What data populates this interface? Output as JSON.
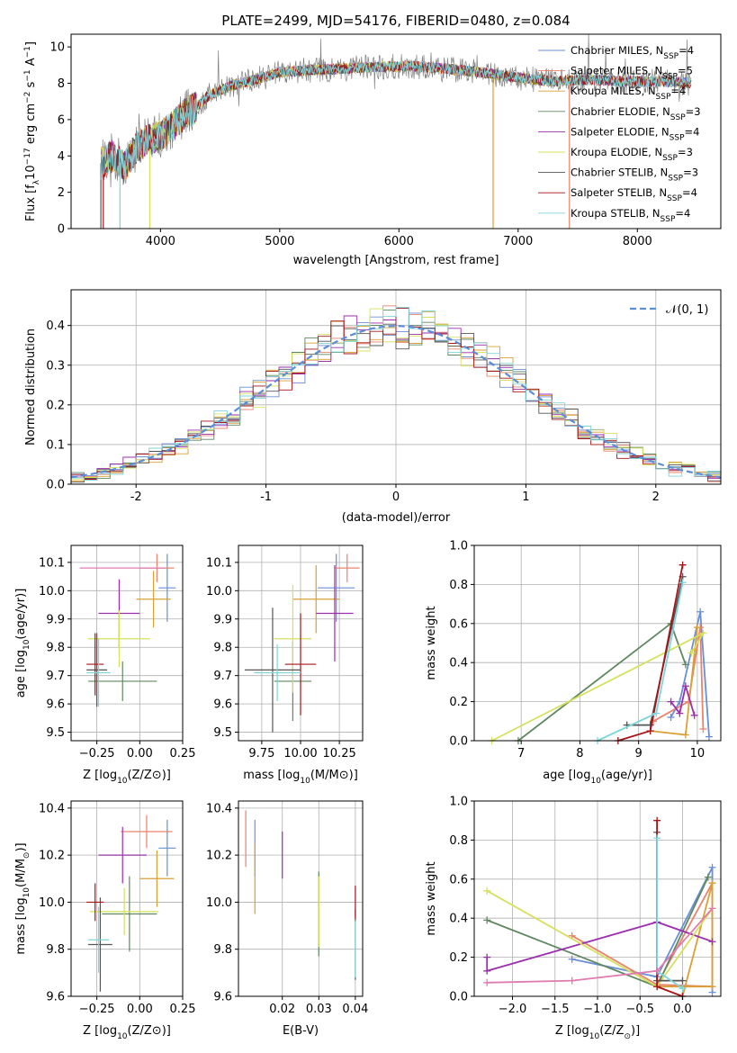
{
  "title": "PLATE=2499, MJD=54176, FIBERID=0480, z=0.084",
  "colors": {
    "Chabrier MILES": "#6a8fd6",
    "Salpeter MILES": "#e8836c",
    "Kroupa MILES": "#d9a035",
    "Chabrier ELODIE": "#5f8860",
    "Salpeter ELODIE": "#9b2fae",
    "Kroupa ELODIE": "#d6e05c",
    "Chabrier STELIB": "#555555",
    "Salpeter STELIB": "#a51419",
    "Kroupa STELIB": "#7fd5d9",
    "normal": "#5b8ed8",
    "data": "#808080"
  },
  "chart_data": [
    {
      "id": "spectrum",
      "type": "line",
      "title": "PLATE=2499, MJD=54176, FIBERID=0480, z=0.084",
      "xlabel": "wavelength [Angstrom, rest frame]",
      "ylabel": "Flux [f",
      "ylabel_parts": [
        "Flux [f",
        "λ",
        "10",
        "−17",
        " erg cm",
        "−2",
        " s",
        "−1",
        " A",
        "−1",
        "]"
      ],
      "xlim": [
        3250,
        8700
      ],
      "ylim": [
        0,
        10.7
      ],
      "xticks": [
        4000,
        5000,
        6000,
        7000,
        8000
      ],
      "yticks": [
        0,
        2,
        4,
        6,
        8,
        10
      ],
      "grid": false,
      "legend_position": "top-right",
      "legend": [
        [
          "Chabrier MILES, N",
          "SSP",
          "=4"
        ],
        [
          "Salpeter MILES, N",
          "SSP",
          "=5"
        ],
        [
          "Kroupa MILES, N",
          "SSP",
          "=4"
        ],
        [
          "Chabrier ELODIE, N",
          "SSP",
          "=3"
        ],
        [
          "Salpeter ELODIE, N",
          "SSP",
          "=4"
        ],
        [
          "Kroupa ELODIE, N",
          "SSP",
          "=3"
        ],
        [
          "Chabrier STELIB, N",
          "SSP",
          "=3"
        ],
        [
          "Salpeter STELIB, N",
          "SSP",
          "=4"
        ],
        [
          "Kroupa STELIB, N",
          "SSP",
          "=4"
        ]
      ],
      "continuum": {
        "x": [
          3500,
          3600,
          3700,
          3800,
          3900,
          4000,
          4100,
          4200,
          4300,
          4400,
          4500,
          4600,
          4800,
          5000,
          5200,
          5500,
          5800,
          6100,
          6400,
          6700,
          7000,
          7300,
          7600,
          7900,
          8200,
          8450
        ],
        "y": [
          3.6,
          4.0,
          3.4,
          4.5,
          4.9,
          5.1,
          5.6,
          6.3,
          6.7,
          7.3,
          7.6,
          7.9,
          8.2,
          8.6,
          8.7,
          8.8,
          8.9,
          8.95,
          8.8,
          8.6,
          8.3,
          8.1,
          8.2,
          8.1,
          8.1,
          8.0
        ]
      }
    },
    {
      "id": "residuals",
      "type": "histogram",
      "xlabel": "(data-model)/error",
      "ylabel": "Normed distribution",
      "xlim": [
        -2.5,
        2.5
      ],
      "ylim": [
        0,
        0.49
      ],
      "xticks": [
        -2,
        -1,
        0,
        1,
        2
      ],
      "yticks": [
        0.0,
        0.1,
        0.2,
        0.3,
        0.4
      ],
      "grid": true,
      "legend_position": "top-right",
      "legend": [
        "𝒩(0, 1)"
      ],
      "bin_width": 0.1,
      "bins_from": -2.5
    },
    {
      "id": "age-vs-Z",
      "type": "errorbar",
      "xlabel": [
        "Z [log",
        "10",
        "(Z/Z",
        "⊙",
        ")]"
      ],
      "ylabel": [
        "age  [log",
        "10",
        "(age/yr)]"
      ],
      "xlim": [
        -0.4,
        0.25
      ],
      "ylim": [
        9.47,
        10.16
      ],
      "xticks": [
        -0.25,
        0.0,
        0.25
      ],
      "xtick_labels": [
        "−0.25",
        "0.00",
        "0.25"
      ],
      "yticks": [
        9.5,
        9.6,
        9.7,
        9.8,
        9.9,
        10.0,
        10.1
      ],
      "grid": true,
      "points": [
        {
          "model": "Chabrier MILES",
          "x": 0.16,
          "xerr": 0.05,
          "y": 10.01,
          "yerr": 0.12
        },
        {
          "model": "Salpeter MILES",
          "x": 0.1,
          "xerr": 0.1,
          "y": 10.08,
          "yerr": 0.05
        },
        {
          "model": "Kroupa MILES",
          "x": 0.08,
          "xerr": 0.1,
          "y": 9.97,
          "yerr": 0.1
        },
        {
          "model": "Chabrier ELODIE",
          "x": -0.1,
          "xerr": 0.2,
          "y": 9.68,
          "yerr": 0.07
        },
        {
          "model": "Salpeter ELODIE",
          "x": -0.12,
          "xerr": 0.12,
          "y": 9.92,
          "yerr": 0.12
        },
        {
          "model": "Kroupa ELODIE",
          "x": -0.12,
          "xerr": 0.18,
          "y": 9.83,
          "yerr": 0.1
        },
        {
          "model": "Chabrier STELIB",
          "x": -0.25,
          "xerr": 0.06,
          "y": 9.72,
          "yerr": 0.13
        },
        {
          "model": "Salpeter STELIB",
          "x": -0.26,
          "xerr": 0.05,
          "y": 9.74,
          "yerr": 0.11
        },
        {
          "model": "Kroupa STELIB",
          "x": -0.24,
          "xerr": 0.07,
          "y": 9.71,
          "yerr": 0.12
        },
        {
          "model": "Salpeter MILES",
          "x": -0.1,
          "xerr": 0.25,
          "y": 10.08,
          "yerr": 0.0
        }
      ]
    },
    {
      "id": "age-vs-mass",
      "type": "errorbar",
      "xlabel": [
        "mass [log",
        "10",
        "(M/M",
        "⊙",
        ")]"
      ],
      "xlim": [
        9.6,
        10.4
      ],
      "ylim": [
        9.47,
        10.16
      ],
      "xticks": [
        9.75,
        10.0,
        10.25
      ],
      "xtick_labels": [
        "9.75",
        "10.00",
        "10.25"
      ],
      "yticks": [
        9.5,
        9.6,
        9.7,
        9.8,
        9.9,
        10.0,
        10.1
      ],
      "grid": true,
      "points": [
        {
          "model": "Chabrier MILES",
          "x": 10.23,
          "xerr": 0.12,
          "y": 10.01,
          "yerr": 0.12
        },
        {
          "model": "Salpeter MILES",
          "x": 10.3,
          "xerr": 0.08,
          "y": 10.08,
          "yerr": 0.05
        },
        {
          "model": "Kroupa MILES",
          "x": 10.1,
          "xerr": 0.15,
          "y": 9.97,
          "yerr": 0.12
        },
        {
          "model": "Chabrier ELODIE",
          "x": 9.95,
          "xerr": 0.12,
          "y": 9.68,
          "yerr": 0.14
        },
        {
          "model": "Salpeter ELODIE",
          "x": 10.22,
          "xerr": 0.12,
          "y": 9.92,
          "yerr": 0.17
        },
        {
          "model": "Kroupa ELODIE",
          "x": 9.95,
          "xerr": 0.12,
          "y": 9.83,
          "yerr": 0.19
        },
        {
          "model": "Chabrier STELIB",
          "x": 9.82,
          "xerr": 0.18,
          "y": 9.72,
          "yerr": 0.22
        },
        {
          "model": "Salpeter STELIB",
          "x": 10.0,
          "xerr": 0.1,
          "y": 9.74,
          "yerr": 0.18
        },
        {
          "model": "Kroupa STELIB",
          "x": 9.85,
          "xerr": 0.15,
          "y": 9.71,
          "yerr": 0.1
        }
      ]
    },
    {
      "id": "weight-vs-age",
      "type": "line",
      "xlabel": [
        "age  [log",
        "10",
        "(age/yr)]"
      ],
      "ylabel": "mass weight",
      "xlim": [
        6.2,
        10.4
      ],
      "ylim": [
        0,
        1
      ],
      "xticks": [
        7,
        8,
        9,
        10
      ],
      "yticks": [
        0.0,
        0.2,
        0.4,
        0.6,
        0.8,
        1.0
      ],
      "grid": true,
      "series": [
        {
          "model": "Chabrier MILES",
          "x": [
            9.55,
            9.7,
            10.05,
            10.2
          ],
          "y": [
            0.12,
            0.2,
            0.66,
            0.02
          ]
        },
        {
          "model": "Salpeter MILES",
          "x": [
            9.25,
            9.85,
            10.05,
            10.1
          ],
          "y": [
            0.1,
            0.2,
            0.58,
            0.06
          ]
        },
        {
          "model": "Kroupa MILES",
          "x": [
            9.2,
            9.8,
            10.0
          ],
          "y": [
            0.05,
            0.03,
            0.58
          ]
        },
        {
          "model": "Chabrier ELODIE",
          "x": [
            6.95,
            9.55,
            9.8
          ],
          "y": [
            0.0,
            0.6,
            0.39
          ]
        },
        {
          "model": "Salpeter ELODIE",
          "x": [
            9.55,
            9.7,
            9.8,
            9.95
          ],
          "y": [
            0.2,
            0.14,
            0.28,
            0.13
          ]
        },
        {
          "model": "Kroupa ELODIE",
          "x": [
            6.5,
            10.1,
            9.9
          ],
          "y": [
            0.0,
            0.55,
            0.45
          ]
        },
        {
          "model": "Chabrier STELIB",
          "x": [
            8.8,
            9.2,
            9.75
          ],
          "y": [
            0.08,
            0.08,
            0.84
          ]
        },
        {
          "model": "Salpeter STELIB",
          "x": [
            8.65,
            9.2,
            9.75
          ],
          "y": [
            0.0,
            0.05,
            0.9
          ]
        },
        {
          "model": "Kroupa STELIB",
          "x": [
            8.3,
            9.3,
            9.75
          ],
          "y": [
            0.0,
            0.14,
            0.81
          ]
        }
      ]
    },
    {
      "id": "mass-vs-Z",
      "type": "errorbar",
      "xlabel": [
        "Z [log",
        "10",
        "(Z/Z",
        "⊙",
        ")]"
      ],
      "ylabel": [
        "mass [log",
        "10",
        "(M/M",
        "⊙",
        ")]"
      ],
      "xlim": [
        -0.4,
        0.25
      ],
      "ylim": [
        9.6,
        10.43
      ],
      "xticks": [
        -0.25,
        0.0,
        0.25
      ],
      "xtick_labels": [
        "−0.25",
        "0.00",
        "0.25"
      ],
      "yticks": [
        9.6,
        9.8,
        10.0,
        10.2,
        10.4
      ],
      "grid": true,
      "points": [
        {
          "model": "Chabrier MILES",
          "x": 0.16,
          "xerr": 0.05,
          "y": 10.23,
          "yerr": 0.12
        },
        {
          "model": "Salpeter MILES",
          "x": 0.04,
          "xerr": 0.15,
          "y": 10.3,
          "yerr": 0.07
        },
        {
          "model": "Kroupa MILES",
          "x": 0.1,
          "xerr": 0.1,
          "y": 10.1,
          "yerr": 0.12
        },
        {
          "model": "Chabrier ELODIE",
          "x": -0.06,
          "xerr": 0.16,
          "y": 9.95,
          "yerr": 0.16
        },
        {
          "model": "Salpeter ELODIE",
          "x": -0.1,
          "xerr": 0.14,
          "y": 10.2,
          "yerr": 0.12
        },
        {
          "model": "Kroupa ELODIE",
          "x": -0.09,
          "xerr": 0.2,
          "y": 9.96,
          "yerr": 0.1
        },
        {
          "model": "Chabrier STELIB",
          "x": -0.23,
          "xerr": 0.07,
          "y": 9.82,
          "yerr": 0.2
        },
        {
          "model": "Salpeter STELIB",
          "x": -0.26,
          "xerr": 0.05,
          "y": 10.0,
          "yerr": 0.08
        },
        {
          "model": "Kroupa STELIB",
          "x": -0.24,
          "xerr": 0.06,
          "y": 9.84,
          "yerr": 0.14
        }
      ]
    },
    {
      "id": "mass-vs-EBV",
      "type": "errorbar",
      "xlabel": "E(B-V)",
      "xlim": [
        0.008,
        0.042
      ],
      "ylim": [
        9.6,
        10.43
      ],
      "xticks": [
        0.02,
        0.03,
        0.04
      ],
      "yticks": [
        9.6,
        9.8,
        10.0,
        10.2,
        10.4
      ],
      "grid": true,
      "points": [
        {
          "model": "Chabrier MILES",
          "x": 0.0125,
          "xerr": 0.0,
          "y": 10.23,
          "yerr": 0.12
        },
        {
          "model": "Salpeter MILES",
          "x": 0.01,
          "xerr": 0.0,
          "y": 10.27,
          "yerr": 0.12
        },
        {
          "model": "Kroupa MILES",
          "x": 0.0125,
          "xerr": 0.0,
          "y": 10.1,
          "yerr": 0.15
        },
        {
          "model": "Chabrier ELODIE",
          "x": 0.03,
          "xerr": 0.0,
          "y": 9.95,
          "yerr": 0.18
        },
        {
          "model": "Salpeter ELODIE",
          "x": 0.02,
          "xerr": 0.0,
          "y": 10.2,
          "yerr": 0.1
        },
        {
          "model": "Kroupa ELODIE",
          "x": 0.03,
          "xerr": 0.0,
          "y": 9.96,
          "yerr": 0.15
        },
        {
          "model": "Chabrier STELIB",
          "x": 0.04,
          "xerr": 0.0,
          "y": 9.82,
          "yerr": 0.15
        },
        {
          "model": "Salpeter STELIB",
          "x": 0.04,
          "xerr": 0.0,
          "y": 10.0,
          "yerr": 0.07
        },
        {
          "model": "Kroupa STELIB",
          "x": 0.04,
          "xerr": 0.0,
          "y": 9.8,
          "yerr": 0.12
        }
      ]
    },
    {
      "id": "weight-vs-Z",
      "type": "line",
      "xlabel": [
        "Z [log",
        "10",
        "(Z/Z",
        "⊙",
        ")]"
      ],
      "ylabel": "mass weight",
      "xlim": [
        -2.45,
        0.45
      ],
      "ylim": [
        0,
        1
      ],
      "xticks": [
        -2.0,
        -1.5,
        -1.0,
        -0.5,
        0.0
      ],
      "xtick_labels": [
        "−2.0",
        "−1.5",
        "−1.0",
        "−0.5",
        "0.0"
      ],
      "yticks": [
        0.0,
        0.2,
        0.4,
        0.6,
        0.8,
        1.0
      ],
      "grid": true,
      "series": [
        {
          "model": "Chabrier MILES",
          "x": [
            -1.3,
            -0.3,
            0.35,
            0.35
          ],
          "y": [
            0.19,
            0.1,
            0.66,
            0.02
          ]
        },
        {
          "model": "Salpeter MILES",
          "x": [
            -1.3,
            -0.3,
            0.35,
            0.35,
            -0.3
          ],
          "y": [
            0.31,
            0.06,
            0.05,
            0.58,
            0.06
          ]
        },
        {
          "model": "Kroupa MILES",
          "x": [
            -0.3,
            0.35,
            0.35,
            0.0
          ],
          "y": [
            0.05,
            0.05,
            0.58,
            0.0
          ]
        },
        {
          "model": "Chabrier ELODIE",
          "x": [
            -2.3,
            -0.3,
            0.3
          ],
          "y": [
            0.39,
            0.05,
            0.61
          ]
        },
        {
          "model": "Salpeter ELODIE",
          "x": [
            -2.3,
            -2.3,
            -0.3,
            0.35
          ],
          "y": [
            0.2,
            0.13,
            0.38,
            0.28
          ]
        },
        {
          "model": "Kroupa ELODIE",
          "x": [
            -2.3,
            -0.3,
            0.35
          ],
          "y": [
            0.54,
            0.05,
            0.45
          ]
        },
        {
          "model": "Chabrier STELIB",
          "x": [
            -0.3,
            -0.3,
            0.0
          ],
          "y": [
            0.84,
            0.08,
            0.08
          ]
        },
        {
          "model": "Salpeter STELIB",
          "x": [
            -0.3,
            -0.3,
            0.0
          ],
          "y": [
            0.9,
            0.05,
            0.0
          ]
        },
        {
          "model": "Kroupa STELIB",
          "x": [
            -0.3,
            -0.3,
            0.0
          ],
          "y": [
            0.81,
            0.13,
            0.04
          ]
        },
        {
          "model": "Kroupa MILES",
          "x": [
            -2.3,
            -1.3,
            -0.3,
            0.35
          ],
          "y": [
            0.07,
            0.08,
            0.13,
            0.45
          ],
          "color": "#e07ab0"
        }
      ]
    }
  ]
}
